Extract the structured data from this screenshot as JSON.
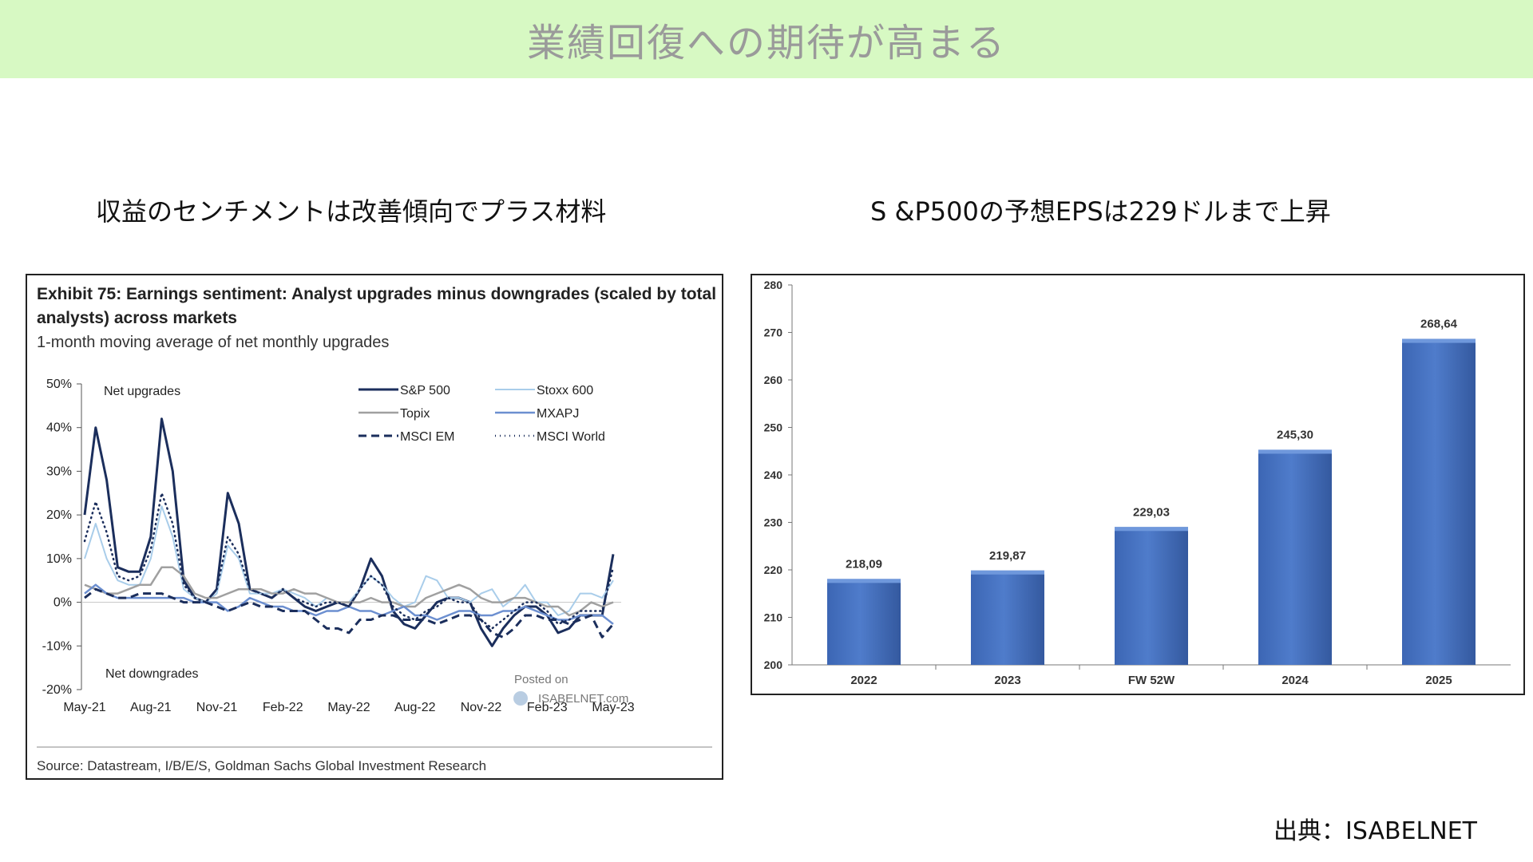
{
  "header": {
    "title": "業績回復への期待が高まる"
  },
  "left_panel": {
    "heading": "収益のセンチメントは改善傾向でプラス材料"
  },
  "right_panel": {
    "heading": "S &P500の予想EPSは229ドルまで上昇"
  },
  "footer": {
    "source_credit": "出典：ISABELNET"
  },
  "chart_data": [
    {
      "type": "line",
      "title": "Exhibit 75: Earnings sentiment: Analyst upgrades minus downgrades (scaled by total analysts) across markets",
      "title_lines": [
        "Exhibit 75: Earnings sentiment: Analyst upgrades minus downgrades (scaled by total",
        "analysts) across markets"
      ],
      "subtitle": "1-month moving average of net monthly upgrades",
      "annotations": {
        "top": "Net upgrades",
        "bottom": "Net downgrades"
      },
      "source": "Source: Datastream, I/B/E/S, Goldman Sachs Global Investment Research",
      "watermark": [
        "Posted on",
        "ISABELNET.com"
      ],
      "x_tick_labels": [
        "May-21",
        "Aug-21",
        "Nov-21",
        "Feb-22",
        "May-22",
        "Aug-22",
        "Nov-22",
        "Feb-23",
        "May-23"
      ],
      "y_tick_labels": [
        "50%",
        "40%",
        "30%",
        "20%",
        "10%",
        "0%",
        "-10%",
        "-20%"
      ],
      "ylim": [
        -20,
        50
      ],
      "x_unit": "months since May-21",
      "legend_placement": "top",
      "series": [
        {
          "name": "S&P 500",
          "color": "#1b2e5c",
          "style": "solid",
          "width": 3,
          "x": [
            0,
            0.5,
            1,
            1.5,
            2,
            2.5,
            3,
            3.5,
            4,
            4.5,
            5,
            5.5,
            6,
            6.5,
            7,
            7.5,
            8,
            8.5,
            9,
            9.5,
            10,
            10.5,
            11,
            11.5,
            12,
            12.5,
            13,
            13.5,
            14,
            14.5,
            15,
            15.5,
            16,
            16.5,
            17,
            17.5,
            18,
            18.5,
            19,
            19.5,
            20,
            20.5,
            21,
            21.5,
            22,
            22.5,
            23,
            23.5,
            24
          ],
          "y": [
            20,
            40,
            28,
            8,
            7,
            7,
            15,
            42,
            30,
            5,
            1,
            0,
            3,
            25,
            18,
            3,
            2,
            1,
            3,
            1,
            -1,
            -2,
            -1,
            0,
            -1,
            3,
            10,
            6,
            -2,
            -5,
            -6,
            -3,
            0,
            1,
            1,
            0,
            -6,
            -10,
            -6,
            -3,
            -1,
            -1,
            -3,
            -7,
            -6,
            -3,
            -3,
            -3,
            11
          ]
        },
        {
          "name": "Stoxx 600",
          "color": "#a9cdea",
          "style": "solid",
          "width": 2,
          "x": [
            0,
            0.5,
            1,
            1.5,
            2,
            2.5,
            3,
            3.5,
            4,
            4.5,
            5,
            5.5,
            6,
            6.5,
            7,
            7.5,
            8,
            8.5,
            9,
            9.5,
            10,
            10.5,
            11,
            11.5,
            12,
            12.5,
            13,
            13.5,
            14,
            14.5,
            15,
            15.5,
            16,
            16.5,
            17,
            17.5,
            18,
            18.5,
            19,
            19.5,
            20,
            20.5,
            21,
            21.5,
            22,
            22.5,
            23,
            23.5,
            24
          ],
          "y": [
            10,
            18,
            10,
            5,
            4,
            4,
            10,
            22,
            15,
            3,
            1,
            0,
            2,
            13,
            10,
            2,
            2,
            2,
            3,
            2,
            1,
            -1,
            1,
            0,
            0,
            3,
            6,
            4,
            1,
            -1,
            0,
            6,
            5,
            1,
            1,
            0,
            2,
            3,
            -1,
            1,
            4,
            0,
            0,
            -3,
            -2,
            2,
            2,
            1,
            5
          ]
        },
        {
          "name": "Topix",
          "color": "#a0a0a0",
          "style": "solid",
          "width": 2.5,
          "x": [
            0,
            0.5,
            1,
            1.5,
            2,
            2.5,
            3,
            3.5,
            4,
            4.5,
            5,
            5.5,
            6,
            6.5,
            7,
            7.5,
            8,
            8.5,
            9,
            9.5,
            10,
            10.5,
            11,
            11.5,
            12,
            12.5,
            13,
            13.5,
            14,
            14.5,
            15,
            15.5,
            16,
            16.5,
            17,
            17.5,
            18,
            18.5,
            19,
            19.5,
            20,
            20.5,
            21,
            21.5,
            22,
            22.5,
            23,
            23.5,
            24
          ],
          "y": [
            4,
            3,
            2,
            2,
            3,
            4,
            4,
            8,
            8,
            6,
            2,
            1,
            1,
            2,
            3,
            3,
            3,
            2,
            2,
            3,
            2,
            2,
            1,
            0,
            0,
            0,
            1,
            0,
            0,
            -1,
            -1,
            1,
            2,
            3,
            4,
            3,
            1,
            0,
            0,
            1,
            1,
            0,
            -1,
            -1,
            -3,
            -2,
            0,
            -1,
            0
          ]
        },
        {
          "name": "MXAPJ",
          "color": "#6c8fd0",
          "style": "solid",
          "width": 2.5,
          "x": [
            0,
            0.5,
            1,
            1.5,
            2,
            2.5,
            3,
            3.5,
            4,
            4.5,
            5,
            5.5,
            6,
            6.5,
            7,
            7.5,
            8,
            8.5,
            9,
            9.5,
            10,
            10.5,
            11,
            11.5,
            12,
            12.5,
            13,
            13.5,
            14,
            14.5,
            15,
            15.5,
            16,
            16.5,
            17,
            17.5,
            18,
            18.5,
            19,
            19.5,
            20,
            20.5,
            21,
            21.5,
            22,
            22.5,
            23,
            23.5,
            24
          ],
          "y": [
            2,
            4,
            2,
            1,
            1,
            1,
            1,
            1,
            1,
            1,
            0,
            0,
            0,
            -2,
            -1,
            1,
            0,
            -1,
            -1,
            -2,
            -2,
            -3,
            -2,
            -2,
            -1,
            -2,
            -2,
            -3,
            -2,
            -1,
            -3,
            -3,
            -4,
            -3,
            -2,
            -2,
            -3,
            -3,
            -2,
            -2,
            -1,
            -2,
            -3,
            -4,
            -4,
            -3,
            -3,
            -3,
            -5
          ]
        },
        {
          "name": "MSCI EM",
          "color": "#1b2e5c",
          "style": "dashed",
          "width": 3,
          "x": [
            0,
            0.5,
            1,
            1.5,
            2,
            2.5,
            3,
            3.5,
            4,
            4.5,
            5,
            5.5,
            6,
            6.5,
            7,
            7.5,
            8,
            8.5,
            9,
            9.5,
            10,
            10.5,
            11,
            11.5,
            12,
            12.5,
            13,
            13.5,
            14,
            14.5,
            15,
            15.5,
            16,
            16.5,
            17,
            17.5,
            18,
            18.5,
            19,
            19.5,
            20,
            20.5,
            21,
            21.5,
            22,
            22.5,
            23,
            23.5,
            24
          ],
          "y": [
            1,
            3,
            2,
            1,
            1,
            2,
            2,
            2,
            1,
            0,
            0,
            0,
            -1,
            -2,
            -1,
            0,
            -1,
            -1,
            -2,
            -2,
            -2,
            -4,
            -6,
            -6,
            -7,
            -4,
            -4,
            -3,
            -3,
            -4,
            -4,
            -4,
            -5,
            -4,
            -3,
            -3,
            -4,
            -7,
            -8,
            -6,
            -3,
            -3,
            -4,
            -4,
            -5,
            -4,
            -3,
            -8,
            -5
          ]
        },
        {
          "name": "MSCI World",
          "color": "#1b2e5c",
          "style": "dotted",
          "width": 2.5,
          "x": [
            0,
            0.5,
            1,
            1.5,
            2,
            2.5,
            3,
            3.5,
            4,
            4.5,
            5,
            5.5,
            6,
            6.5,
            7,
            7.5,
            8,
            8.5,
            9,
            9.5,
            10,
            10.5,
            11,
            11.5,
            12,
            12.5,
            13,
            13.5,
            14,
            14.5,
            15,
            15.5,
            16,
            16.5,
            17,
            17.5,
            18,
            18.5,
            19,
            19.5,
            20,
            20.5,
            21,
            21.5,
            22,
            22.5,
            23,
            23.5,
            24
          ],
          "y": [
            14,
            23,
            16,
            6,
            5,
            6,
            12,
            25,
            18,
            4,
            1,
            0,
            3,
            15,
            11,
            3,
            2,
            1,
            3,
            1,
            0,
            -1,
            0,
            0,
            -1,
            3,
            6,
            4,
            -1,
            -3,
            -4,
            -2,
            -1,
            1,
            0,
            0,
            -4,
            -6,
            -4,
            -2,
            0,
            0,
            -2,
            -5,
            -4,
            -2,
            -2,
            -2,
            8
          ]
        }
      ]
    },
    {
      "type": "bar",
      "categories": [
        "2022",
        "2023",
        "FW 52W",
        "2024",
        "2025"
      ],
      "values": [
        218.09,
        219.87,
        229.03,
        245.3,
        268.64
      ],
      "value_labels": [
        "218,09",
        "219,87",
        "229,03",
        "245,30",
        "268,64"
      ],
      "ylim": [
        200,
        280
      ],
      "y_tick_labels": [
        "200",
        "210",
        "220",
        "230",
        "240",
        "250",
        "260",
        "270",
        "280"
      ],
      "bar_color": "#4f7ccb",
      "grid": false
    }
  ]
}
